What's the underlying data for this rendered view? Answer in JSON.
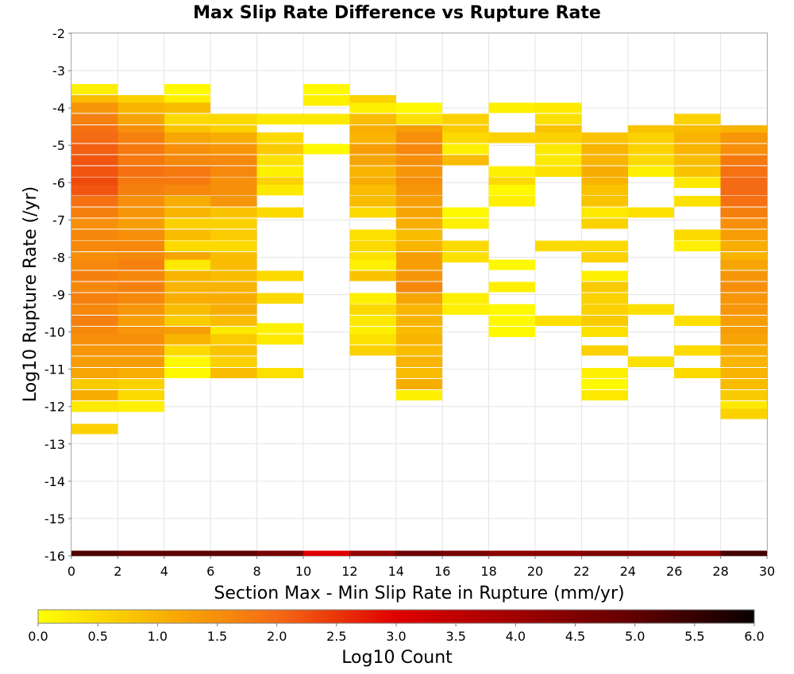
{
  "chart_data": {
    "type": "heatmap",
    "title": "Max Slip Rate Difference vs Rupture Rate",
    "xlabel": "Section Max - Min Slip Rate in Rupture (mm/yr)",
    "ylabel": "Log10 Rupture Rate (/yr)",
    "xlim": [
      0,
      30
    ],
    "ylim": [
      -16,
      -2
    ],
    "x_ticks": [
      "0",
      "2",
      "4",
      "6",
      "8",
      "10",
      "12",
      "14",
      "16",
      "18",
      "20",
      "22",
      "24",
      "26",
      "28",
      "30"
    ],
    "y_ticks": [
      "-2",
      "-3",
      "-4",
      "-5",
      "-6",
      "-7",
      "-8",
      "-9",
      "-10",
      "-11",
      "-12",
      "-13",
      "-14",
      "-15",
      "-16"
    ],
    "x_bin_width": 2,
    "y_bin_height": 0.28,
    "colorbar": {
      "label": "Log10 Count",
      "range": [
        0,
        6
      ],
      "ticks": [
        "0.0",
        "0.5",
        "1.0",
        "1.5",
        "2.0",
        "2.5",
        "3.0",
        "3.5",
        "4.0",
        "4.5",
        "5.0",
        "5.5",
        "6.0"
      ],
      "stops": [
        {
          "value": 0.0,
          "color": "#ffff00"
        },
        {
          "value": 1.0,
          "color": "#f8b400"
        },
        {
          "value": 2.0,
          "color": "#f56a14"
        },
        {
          "value": 3.0,
          "color": "#e00000"
        },
        {
          "value": 4.0,
          "color": "#a00000"
        },
        {
          "value": 5.0,
          "color": "#600000"
        },
        {
          "value": 6.0,
          "color": "#0a0000"
        }
      ]
    },
    "columns": [
      {
        "x_start": 0,
        "cells": [
          [
            -3.5,
            0.2
          ],
          [
            -3.8,
            0.9
          ],
          [
            -4.0,
            1.4
          ],
          [
            -4.3,
            1.7
          ],
          [
            -4.6,
            1.9
          ],
          [
            -4.8,
            2.0
          ],
          [
            -5.1,
            2.1
          ],
          [
            -5.4,
            2.2
          ],
          [
            -5.7,
            2.2
          ],
          [
            -6.0,
            2.3
          ],
          [
            -6.2,
            2.2
          ],
          [
            -6.5,
            1.9
          ],
          [
            -6.8,
            1.7
          ],
          [
            -7.1,
            1.5
          ],
          [
            -7.4,
            1.6
          ],
          [
            -7.7,
            1.6
          ],
          [
            -8.0,
            1.5
          ],
          [
            -8.2,
            1.6
          ],
          [
            -8.5,
            1.7
          ],
          [
            -8.8,
            1.6
          ],
          [
            -9.1,
            1.7
          ],
          [
            -9.4,
            1.6
          ],
          [
            -9.7,
            1.7
          ],
          [
            -10.0,
            1.6
          ],
          [
            -10.2,
            1.5
          ],
          [
            -10.5,
            1.4
          ],
          [
            -10.8,
            1.3
          ],
          [
            -11.1,
            1.2
          ],
          [
            -11.4,
            0.7
          ],
          [
            -11.7,
            1.1
          ],
          [
            -12.0,
            0.3
          ],
          [
            -12.6,
            0.6
          ]
        ]
      },
      {
        "x_start": 2,
        "cells": [
          [
            -3.8,
            0.6
          ],
          [
            -4.0,
            1.0
          ],
          [
            -4.3,
            1.2
          ],
          [
            -4.6,
            1.5
          ],
          [
            -4.8,
            1.7
          ],
          [
            -5.1,
            1.8
          ],
          [
            -5.4,
            1.8
          ],
          [
            -5.7,
            1.9
          ],
          [
            -6.0,
            1.8
          ],
          [
            -6.2,
            1.7
          ],
          [
            -6.5,
            1.5
          ],
          [
            -6.8,
            1.4
          ],
          [
            -7.1,
            1.3
          ],
          [
            -7.4,
            1.5
          ],
          [
            -7.7,
            1.6
          ],
          [
            -8.0,
            1.6
          ],
          [
            -8.2,
            1.7
          ],
          [
            -8.5,
            1.6
          ],
          [
            -8.8,
            1.7
          ],
          [
            -9.1,
            1.6
          ],
          [
            -9.4,
            1.4
          ],
          [
            -9.7,
            1.3
          ],
          [
            -10.0,
            1.4
          ],
          [
            -10.2,
            1.5
          ],
          [
            -10.5,
            1.4
          ],
          [
            -10.8,
            1.3
          ],
          [
            -11.1,
            1.1
          ],
          [
            -11.4,
            0.6
          ],
          [
            -11.7,
            0.5
          ],
          [
            -12.0,
            0.2
          ]
        ]
      },
      {
        "x_start": 4,
        "cells": [
          [
            -3.5,
            0.1
          ],
          [
            -3.8,
            0.2
          ],
          [
            -4.0,
            0.9
          ],
          [
            -4.3,
            0.5
          ],
          [
            -4.6,
            0.8
          ],
          [
            -4.8,
            1.2
          ],
          [
            -5.1,
            1.5
          ],
          [
            -5.4,
            1.6
          ],
          [
            -5.7,
            1.8
          ],
          [
            -6.0,
            1.8
          ],
          [
            -6.2,
            1.6
          ],
          [
            -6.5,
            1.1
          ],
          [
            -6.8,
            1.0
          ],
          [
            -7.1,
            0.6
          ],
          [
            -7.4,
            0.9
          ],
          [
            -7.7,
            0.5
          ],
          [
            -8.0,
            1.2
          ],
          [
            -8.2,
            0.3
          ],
          [
            -8.5,
            1.0
          ],
          [
            -8.8,
            1.0
          ],
          [
            -9.1,
            1.1
          ],
          [
            -9.4,
            0.9
          ],
          [
            -9.7,
            0.7
          ],
          [
            -10.0,
            1.3
          ],
          [
            -10.2,
            1.0
          ],
          [
            -10.5,
            0.5
          ],
          [
            -10.8,
            0.1
          ],
          [
            -11.1,
            0.1
          ]
        ]
      },
      {
        "x_start": 6,
        "cells": [
          [
            -4.3,
            0.5
          ],
          [
            -4.6,
            0.6
          ],
          [
            -4.8,
            1.1
          ],
          [
            -5.1,
            1.4
          ],
          [
            -5.4,
            1.6
          ],
          [
            -5.7,
            1.6
          ],
          [
            -6.0,
            1.5
          ],
          [
            -6.2,
            1.5
          ],
          [
            -6.5,
            1.4
          ],
          [
            -6.8,
            0.8
          ],
          [
            -7.1,
            0.6
          ],
          [
            -7.4,
            0.7
          ],
          [
            -7.7,
            0.5
          ],
          [
            -8.0,
            0.9
          ],
          [
            -8.2,
            0.9
          ],
          [
            -8.5,
            0.9
          ],
          [
            -8.8,
            1.0
          ],
          [
            -9.1,
            1.1
          ],
          [
            -9.4,
            1.1
          ],
          [
            -9.7,
            0.9
          ],
          [
            -10.0,
            0.3
          ],
          [
            -10.2,
            0.7
          ],
          [
            -10.5,
            0.8
          ],
          [
            -10.8,
            0.6
          ],
          [
            -11.1,
            0.9
          ]
        ]
      },
      {
        "x_start": 8,
        "cells": [
          [
            -4.3,
            0.3
          ],
          [
            -4.8,
            0.5
          ],
          [
            -5.1,
            0.7
          ],
          [
            -5.4,
            0.4
          ],
          [
            -5.7,
            0.2
          ],
          [
            -6.0,
            0.6
          ],
          [
            -6.2,
            0.3
          ],
          [
            -6.8,
            0.5
          ],
          [
            -8.5,
            0.5
          ],
          [
            -9.1,
            0.5
          ],
          [
            -9.9,
            0.2
          ],
          [
            -10.2,
            0.3
          ],
          [
            -11.1,
            0.4
          ]
        ]
      },
      {
        "x_start": 10,
        "cells": [
          [
            -3.5,
            0.1
          ],
          [
            -3.8,
            0.2
          ],
          [
            -4.3,
            0.3
          ],
          [
            -5.1,
            0.1
          ]
        ]
      },
      {
        "x_start": 12,
        "cells": [
          [
            -3.8,
            0.6
          ],
          [
            -4.0,
            0.2
          ],
          [
            -4.3,
            0.9
          ],
          [
            -4.6,
            1.1
          ],
          [
            -4.8,
            1.0
          ],
          [
            -5.1,
            1.3
          ],
          [
            -5.4,
            1.2
          ],
          [
            -5.7,
            1.0
          ],
          [
            -6.0,
            1.1
          ],
          [
            -6.2,
            0.9
          ],
          [
            -6.5,
            0.9
          ],
          [
            -6.8,
            0.5
          ],
          [
            -7.4,
            0.4
          ],
          [
            -7.7,
            0.5
          ],
          [
            -8.0,
            0.4
          ],
          [
            -8.2,
            0.2
          ],
          [
            -8.5,
            0.8
          ],
          [
            -9.1,
            0.2
          ],
          [
            -9.4,
            0.5
          ],
          [
            -9.7,
            0.3
          ],
          [
            -10.0,
            0.2
          ],
          [
            -10.2,
            0.4
          ],
          [
            -10.5,
            0.6
          ]
        ]
      },
      {
        "x_start": 14,
        "cells": [
          [
            -4.0,
            0.1
          ],
          [
            -4.3,
            0.4
          ],
          [
            -4.6,
            1.3
          ],
          [
            -4.8,
            1.5
          ],
          [
            -5.1,
            1.6
          ],
          [
            -5.4,
            1.5
          ],
          [
            -5.7,
            1.4
          ],
          [
            -6.0,
            1.5
          ],
          [
            -6.2,
            1.4
          ],
          [
            -6.5,
            1.3
          ],
          [
            -6.8,
            1.2
          ],
          [
            -7.1,
            1.1
          ],
          [
            -7.4,
            0.9
          ],
          [
            -7.7,
            1.0
          ],
          [
            -8.0,
            1.3
          ],
          [
            -8.2,
            1.3
          ],
          [
            -8.5,
            1.4
          ],
          [
            -8.8,
            1.6
          ],
          [
            -9.1,
            1.2
          ],
          [
            -9.4,
            1.0
          ],
          [
            -9.7,
            1.0
          ],
          [
            -10.0,
            0.9
          ],
          [
            -10.2,
            1.0
          ],
          [
            -10.5,
            0.9
          ],
          [
            -10.8,
            1.0
          ],
          [
            -11.1,
            0.9
          ],
          [
            -11.4,
            1.1
          ],
          [
            -11.7,
            0.2
          ]
        ]
      },
      {
        "x_start": 16,
        "cells": [
          [
            -4.3,
            0.6
          ],
          [
            -4.6,
            0.7
          ],
          [
            -4.8,
            0.5
          ],
          [
            -5.1,
            0.2
          ],
          [
            -5.4,
            0.9
          ],
          [
            -6.8,
            0.1
          ],
          [
            -7.1,
            0.2
          ],
          [
            -7.7,
            0.5
          ],
          [
            -8.0,
            0.4
          ],
          [
            -9.1,
            0.2
          ],
          [
            -9.4,
            0.2
          ]
        ]
      },
      {
        "x_start": 18,
        "cells": [
          [
            -4.0,
            0.2
          ],
          [
            -4.8,
            0.6
          ],
          [
            -5.7,
            0.2
          ],
          [
            -6.0,
            0.5
          ],
          [
            -6.2,
            0.1
          ],
          [
            -6.5,
            0.2
          ],
          [
            -8.2,
            0.1
          ],
          [
            -8.8,
            0.2
          ],
          [
            -9.4,
            0.1
          ],
          [
            -9.7,
            0.1
          ],
          [
            -10.0,
            0.1
          ]
        ]
      },
      {
        "x_start": 20,
        "cells": [
          [
            -4.0,
            0.3
          ],
          [
            -4.3,
            0.4
          ],
          [
            -4.6,
            0.8
          ],
          [
            -4.8,
            0.6
          ],
          [
            -5.1,
            0.3
          ],
          [
            -5.4,
            0.3
          ],
          [
            -5.7,
            0.4
          ],
          [
            -7.7,
            0.5
          ],
          [
            -9.7,
            0.4
          ]
        ]
      },
      {
        "x_start": 22,
        "cells": [
          [
            -4.8,
            0.8
          ],
          [
            -5.1,
            1.0
          ],
          [
            -5.4,
            1.0
          ],
          [
            -5.7,
            1.1
          ],
          [
            -6.0,
            1.0
          ],
          [
            -6.2,
            0.8
          ],
          [
            -6.5,
            0.8
          ],
          [
            -6.8,
            0.3
          ],
          [
            -7.1,
            0.6
          ],
          [
            -7.7,
            0.5
          ],
          [
            -8.0,
            0.6
          ],
          [
            -8.5,
            0.2
          ],
          [
            -8.8,
            0.7
          ],
          [
            -9.1,
            0.6
          ],
          [
            -9.4,
            0.6
          ],
          [
            -9.7,
            0.7
          ],
          [
            -10.0,
            0.4
          ],
          [
            -10.5,
            0.6
          ],
          [
            -11.1,
            0.2
          ],
          [
            -11.4,
            0.1
          ],
          [
            -11.7,
            0.3
          ]
        ]
      },
      {
        "x_start": 24,
        "cells": [
          [
            -4.6,
            0.8
          ],
          [
            -4.8,
            0.6
          ],
          [
            -5.1,
            0.6
          ],
          [
            -5.4,
            0.5
          ],
          [
            -5.7,
            0.2
          ],
          [
            -6.8,
            0.4
          ],
          [
            -9.4,
            0.4
          ],
          [
            -10.8,
            0.4
          ]
        ]
      },
      {
        "x_start": 26,
        "cells": [
          [
            -4.3,
            0.6
          ],
          [
            -4.6,
            0.9
          ],
          [
            -4.8,
            1.0
          ],
          [
            -5.1,
            1.0
          ],
          [
            -5.4,
            0.9
          ],
          [
            -5.7,
            0.8
          ],
          [
            -6.0,
            0.3
          ],
          [
            -6.5,
            0.4
          ],
          [
            -7.4,
            0.5
          ],
          [
            -7.7,
            0.2
          ],
          [
            -9.7,
            0.4
          ],
          [
            -10.5,
            0.5
          ],
          [
            -11.1,
            0.5
          ]
        ]
      },
      {
        "x_start": 28,
        "cells": [
          [
            -4.6,
            1.0
          ],
          [
            -4.8,
            1.4
          ],
          [
            -5.1,
            1.5
          ],
          [
            -5.4,
            1.8
          ],
          [
            -5.7,
            1.9
          ],
          [
            -6.0,
            2.0
          ],
          [
            -6.2,
            2.0
          ],
          [
            -6.5,
            1.9
          ],
          [
            -6.8,
            1.7
          ],
          [
            -7.1,
            1.5
          ],
          [
            -7.4,
            1.3
          ],
          [
            -7.7,
            1.1
          ],
          [
            -8.0,
            1.0
          ],
          [
            -8.2,
            1.2
          ],
          [
            -8.5,
            1.4
          ],
          [
            -8.8,
            1.5
          ],
          [
            -9.1,
            1.4
          ],
          [
            -9.4,
            1.4
          ],
          [
            -9.7,
            1.3
          ],
          [
            -10.0,
            1.3
          ],
          [
            -10.2,
            1.2
          ],
          [
            -10.5,
            1.1
          ],
          [
            -10.8,
            1.0
          ],
          [
            -11.1,
            1.0
          ],
          [
            -11.4,
            0.9
          ],
          [
            -11.7,
            0.7
          ],
          [
            -12.0,
            0.3
          ],
          [
            -12.2,
            0.6
          ]
        ]
      }
    ],
    "bottom_row": {
      "y": -16.0,
      "values": [
        5.2,
        5.0,
        5.0,
        5.0,
        4.6,
        3.0,
        4.2,
        4.8,
        4.6,
        4.3,
        4.3,
        4.5,
        4.4,
        4.2,
        5.3
      ]
    }
  }
}
